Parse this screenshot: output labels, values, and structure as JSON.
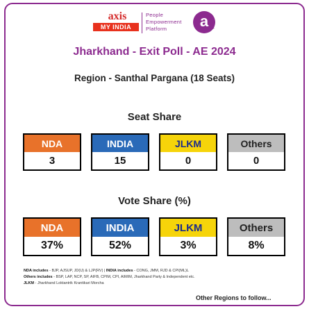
{
  "logo": {
    "brand_top": "axis",
    "brand_bottom": "MY INDIA",
    "tagline_1": "People",
    "tagline_2": "Empowerment",
    "tagline_3": "Platform",
    "badge_letter": "a"
  },
  "title": "Jharkhand - Exit Poll - AE 2024",
  "subtitle": "Region - Santhal Pargana (18 Seats)",
  "seat_share": {
    "heading": "Seat Share",
    "items": [
      {
        "label": "NDA",
        "value": "3"
      },
      {
        "label": "INDIA",
        "value": "15"
      },
      {
        "label": "JLKM",
        "value": "0"
      },
      {
        "label": "Others",
        "value": "0"
      }
    ]
  },
  "vote_share": {
    "heading": "Vote Share (%)",
    "items": [
      {
        "label": "NDA",
        "value": "37%"
      },
      {
        "label": "INDIA",
        "value": "52%"
      },
      {
        "label": "JLKM",
        "value": "3%"
      },
      {
        "label": "Others",
        "value": "8%"
      }
    ]
  },
  "notes": {
    "nda_label": "NDA includes",
    "nda_text": " - BJP, AJSUP, JD(U) & LJP(RV)  |  ",
    "india_label": "INDIA includes",
    "india_text": " - CONG, JMM, RJD & CPI(ML)L",
    "others_label": "Others includes",
    "others_text": " - BSP, LAP, NCP, SP, AIFB, CPIM, CPI, AIMIM, Jharkhand Party & Independent etc.",
    "jlkm_label": "JLKM",
    "jlkm_text": " - Jharkhand Loktantrik Krantikari Morcha"
  },
  "footer": "Other Regions to follow...",
  "colors": {
    "purple": "#8c2a8f",
    "nda": "#e8722a",
    "india": "#2a6ab8",
    "jlkm": "#f6d40a",
    "others": "#bdbdbd"
  }
}
